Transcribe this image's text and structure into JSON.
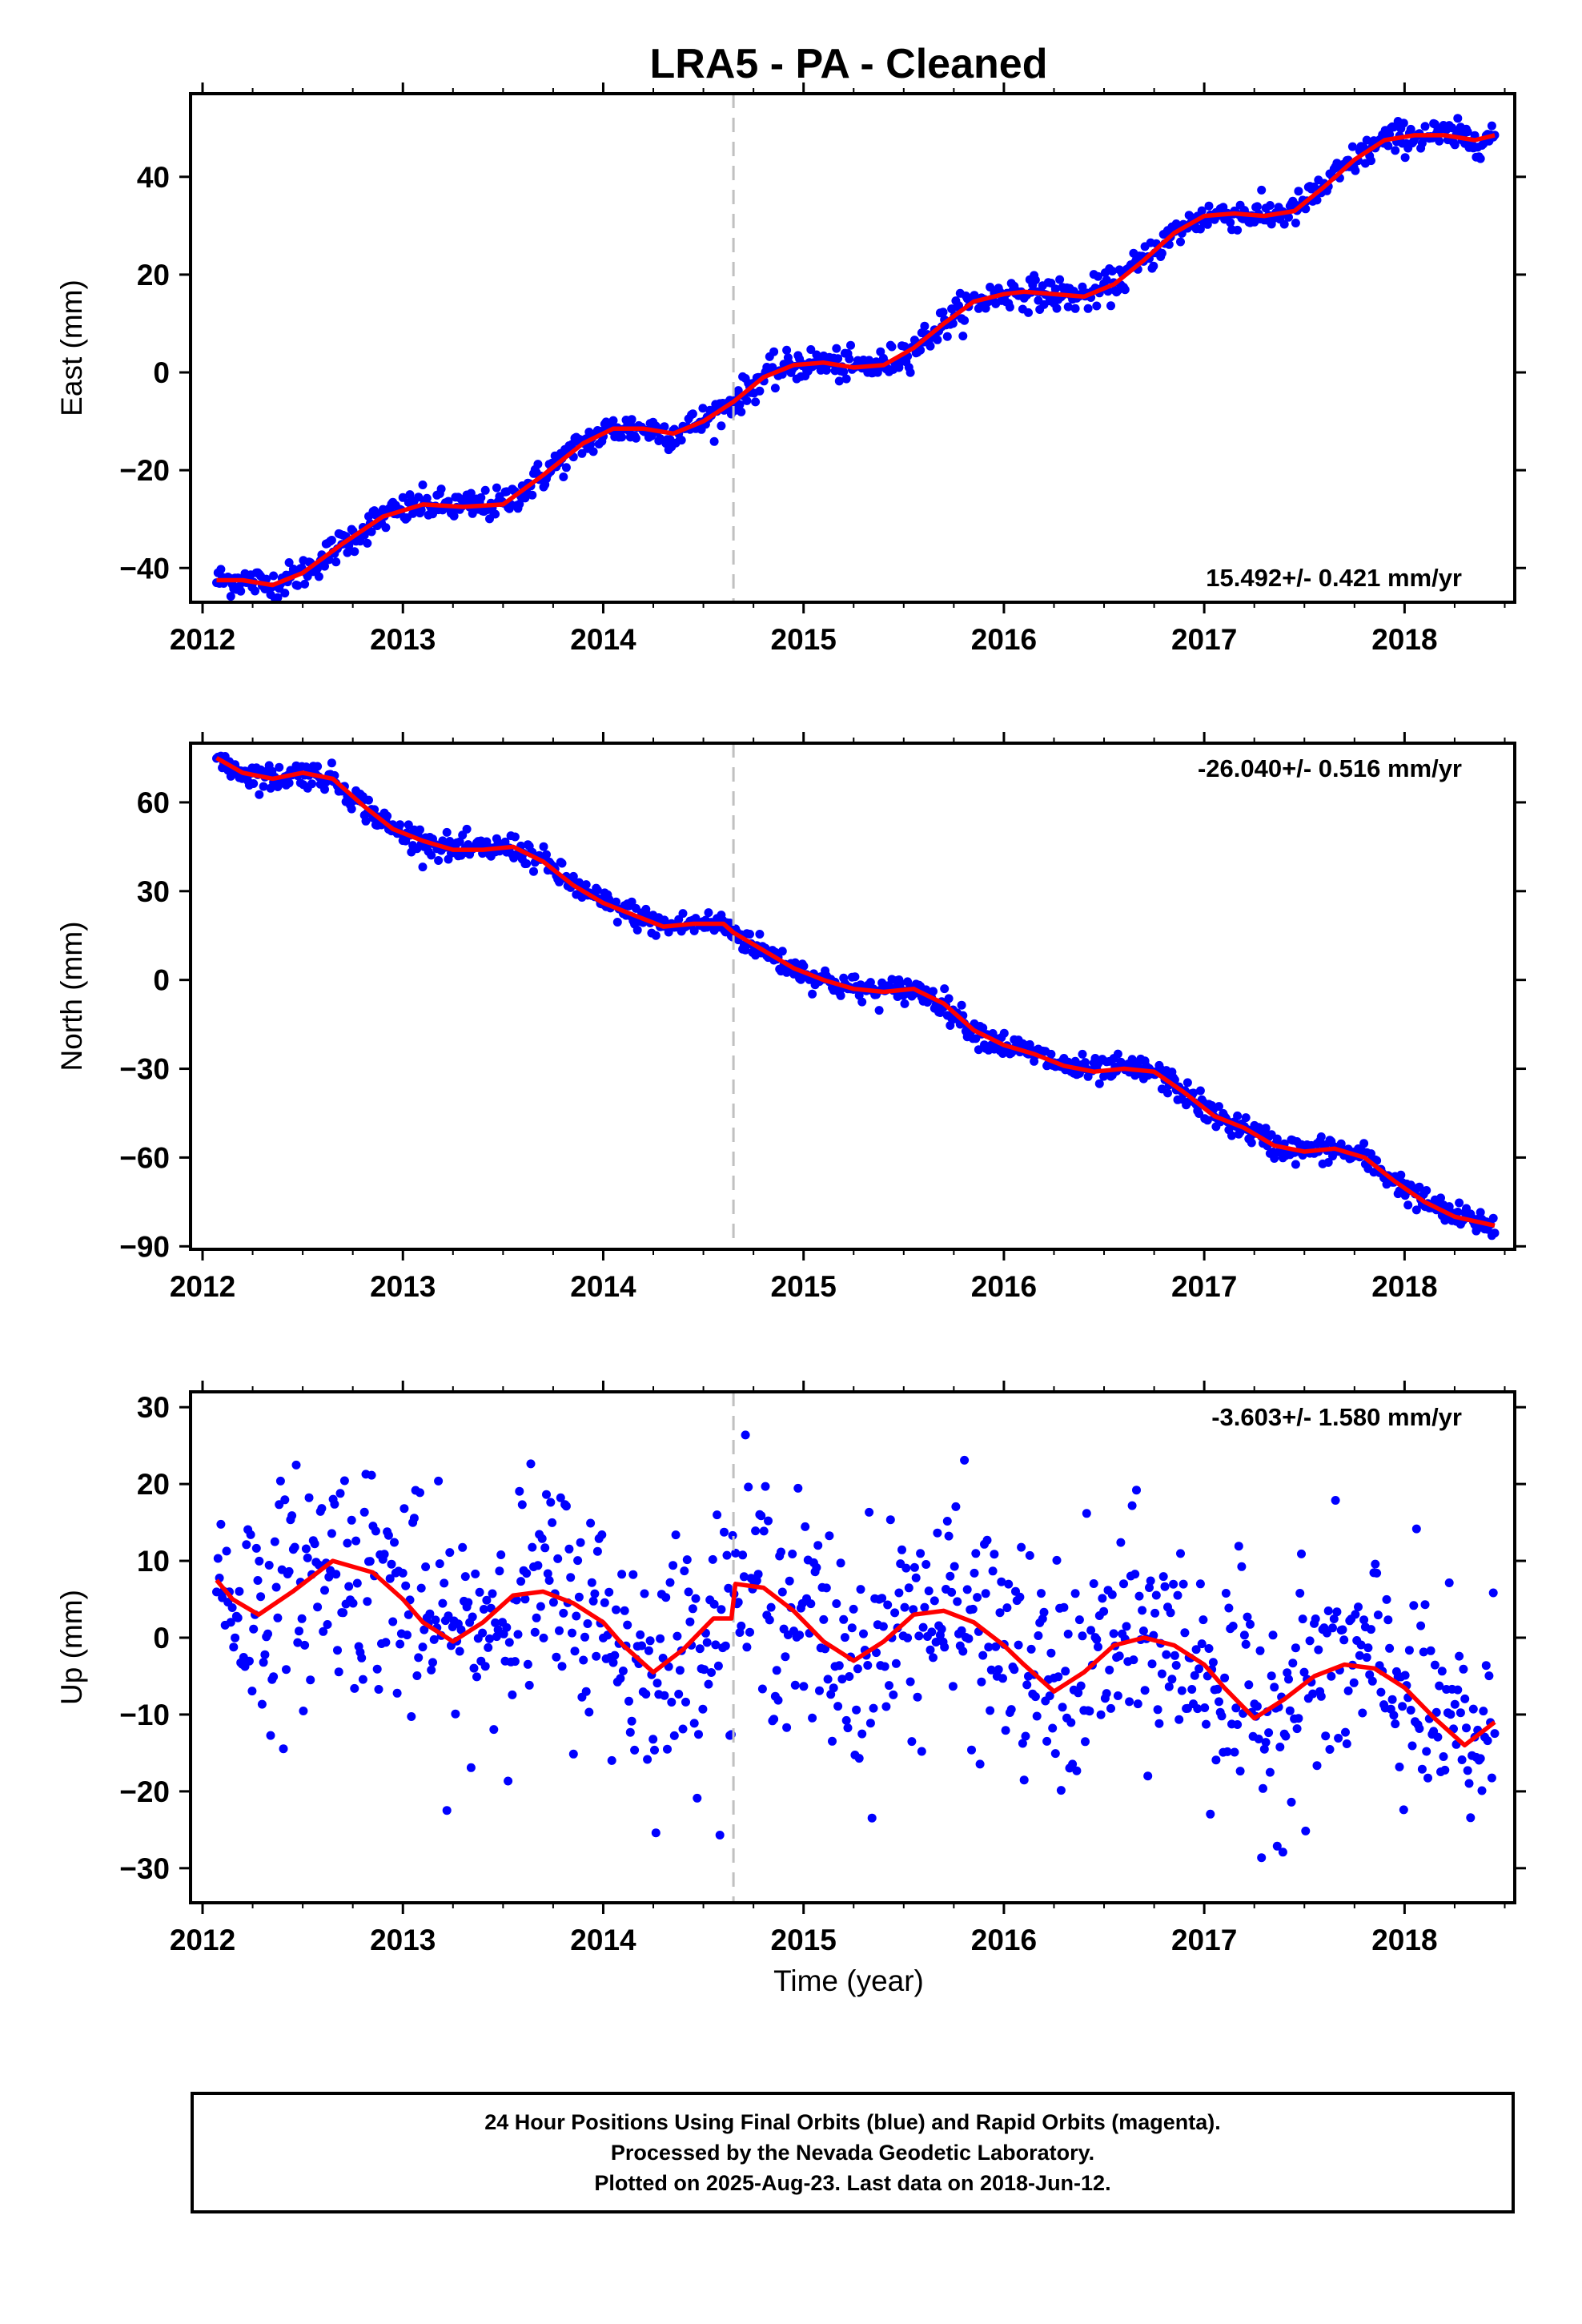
{
  "title": "LRA5  - PA - Cleaned",
  "xlabel": "Time (year)",
  "footer": {
    "line1": "24 Hour Positions Using Final Orbits (blue) and Rapid Orbits (magenta).",
    "line2": "Processed by the Nevada Geodetic Laboratory.",
    "line3": "Plotted on 2025-Aug-23. Last data on 2018-Jun-12."
  },
  "colors": {
    "final_orbit_points": "#0000ff",
    "model_fit": "#ff0000",
    "equipment_change_line": "#c0c0c0"
  },
  "chart_data": [
    {
      "type": "scatter",
      "component": "east",
      "ylabel": "East (mm)",
      "rate_label": "15.492+/- 0.421 mm/yr",
      "xlim": [
        2011.94,
        2018.55
      ],
      "ylim": [
        -47,
        57
      ],
      "yticks": [
        -40,
        -20,
        0,
        20,
        40
      ],
      "xticks": [
        2012,
        2013,
        2014,
        2015,
        2016,
        2017,
        2018
      ],
      "vline_x": 2014.65,
      "grid": false,
      "fit": {
        "x": [
          2012.07,
          2012.2,
          2012.35,
          2012.5,
          2012.7,
          2012.9,
          2013.1,
          2013.3,
          2013.5,
          2013.7,
          2013.9,
          2014.05,
          2014.2,
          2014.35,
          2014.5,
          2014.65,
          2014.8,
          2014.95,
          2015.1,
          2015.25,
          2015.4,
          2015.55,
          2015.7,
          2015.85,
          2016.0,
          2016.1,
          2016.25,
          2016.4,
          2016.55,
          2016.7,
          2016.85,
          2017.0,
          2017.15,
          2017.3,
          2017.45,
          2017.6,
          2017.75,
          2017.9,
          2018.05,
          2018.2,
          2018.35,
          2018.45
        ],
        "y": [
          -42.5,
          -42.5,
          -43.5,
          -41,
          -35,
          -29.5,
          -27,
          -27.5,
          -27,
          -21,
          -14.5,
          -11.5,
          -11.5,
          -12.5,
          -10,
          -6,
          -1,
          1.5,
          2,
          1,
          1.5,
          5,
          10,
          14.5,
          16,
          16.5,
          16,
          15.5,
          18,
          23,
          28.5,
          32,
          32.5,
          32,
          33,
          38,
          43.5,
          47.5,
          48.5,
          48.5,
          47.5,
          48.5
        ]
      },
      "scatter": {
        "spread": 1.6
      }
    },
    {
      "type": "scatter",
      "component": "north",
      "ylabel": "North (mm)",
      "rate_label": "-26.040+/- 0.516 mm/yr",
      "xlim": [
        2011.94,
        2018.55
      ],
      "ylim": [
        -91,
        80
      ],
      "yticks": [
        -90,
        -60,
        -30,
        0,
        30,
        60
      ],
      "xticks": [
        2012,
        2013,
        2014,
        2015,
        2016,
        2017,
        2018
      ],
      "vline_x": 2014.65,
      "grid": false,
      "fit": {
        "x": [
          2012.07,
          2012.2,
          2012.35,
          2012.5,
          2012.65,
          2012.8,
          2012.95,
          2013.1,
          2013.25,
          2013.4,
          2013.55,
          2013.7,
          2013.85,
          2014.0,
          2014.15,
          2014.3,
          2014.45,
          2014.6,
          2014.65,
          2014.8,
          2014.95,
          2015.1,
          2015.25,
          2015.4,
          2015.55,
          2015.7,
          2015.85,
          2016.0,
          2016.15,
          2016.3,
          2016.45,
          2016.6,
          2016.75,
          2016.9,
          2017.05,
          2017.2,
          2017.35,
          2017.5,
          2017.65,
          2017.8,
          2017.95,
          2018.1,
          2018.25,
          2018.45
        ],
        "y": [
          75,
          70,
          68,
          70,
          68,
          59,
          51,
          47,
          44,
          44,
          45,
          40,
          32,
          26,
          22,
          18,
          19,
          19,
          16,
          10,
          4,
          0,
          -3,
          -4,
          -3,
          -8,
          -17,
          -22,
          -25,
          -29,
          -31,
          -30,
          -31,
          -38,
          -46,
          -50,
          -56,
          -58,
          -57,
          -60,
          -68,
          -75,
          -80,
          -83
        ]
      },
      "scatter": {
        "spread": 2.2
      }
    },
    {
      "type": "scatter",
      "component": "up",
      "ylabel": "Up (mm)",
      "rate_label": "-3.603+/- 1.580 mm/yr",
      "xlim": [
        2011.94,
        2018.55
      ],
      "ylim": [
        -34.5,
        32
      ],
      "yticks": [
        -30,
        -20,
        -10,
        0,
        10,
        20,
        30
      ],
      "xticks": [
        2012,
        2013,
        2014,
        2015,
        2016,
        2017,
        2018
      ],
      "vline_x": 2014.65,
      "grid": false,
      "fit": {
        "x": [
          2012.07,
          2012.15,
          2012.28,
          2012.45,
          2012.65,
          2012.85,
          2013.0,
          2013.1,
          2013.25,
          2013.4,
          2013.55,
          2013.7,
          2013.85,
          2014.0,
          2014.1,
          2014.25,
          2014.4,
          2014.55,
          2014.64,
          2014.66,
          2014.8,
          2014.95,
          2015.1,
          2015.25,
          2015.4,
          2015.55,
          2015.7,
          2015.85,
          2016.0,
          2016.1,
          2016.25,
          2016.4,
          2016.55,
          2016.7,
          2016.85,
          2017.0,
          2017.1,
          2017.25,
          2017.4,
          2017.55,
          2017.7,
          2017.85,
          2018.0,
          2018.15,
          2018.3,
          2018.45
        ],
        "y": [
          7.5,
          5,
          3,
          6,
          10,
          8.5,
          5,
          2,
          -0.5,
          2,
          5.5,
          6,
          4.5,
          2,
          -1,
          -4.5,
          -1.5,
          2.5,
          2.5,
          7,
          6.5,
          3.5,
          -0.5,
          -3,
          -0.5,
          3,
          3.5,
          2,
          -1,
          -3.5,
          -7,
          -4.5,
          -1,
          0,
          -1,
          -3.5,
          -6.5,
          -10.5,
          -8,
          -5,
          -3.5,
          -4,
          -6.5,
          -10.5,
          -14,
          -11
        ]
      },
      "scatter": {
        "spread": 7.5
      }
    }
  ]
}
